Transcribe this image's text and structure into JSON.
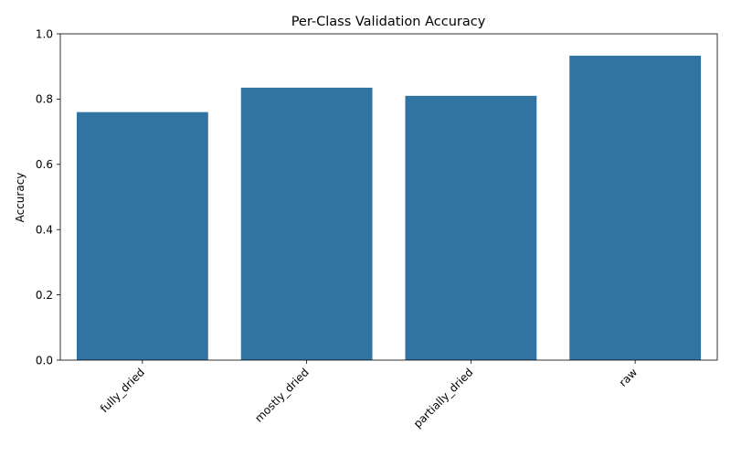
{
  "chart_data": {
    "type": "bar",
    "title": "Per-Class Validation Accuracy",
    "xlabel": "",
    "ylabel": "Accuracy",
    "categories": [
      "fully_dried",
      "mostly_dried",
      "partially_dried",
      "raw"
    ],
    "values": [
      0.76,
      0.835,
      0.81,
      0.933
    ],
    "ylim": [
      0,
      1.0
    ],
    "yticks": [
      "0.0",
      "0.2",
      "0.4",
      "0.6",
      "0.8",
      "1.0"
    ],
    "bar_color": "#3274a1",
    "grid": false,
    "legend": "none"
  }
}
